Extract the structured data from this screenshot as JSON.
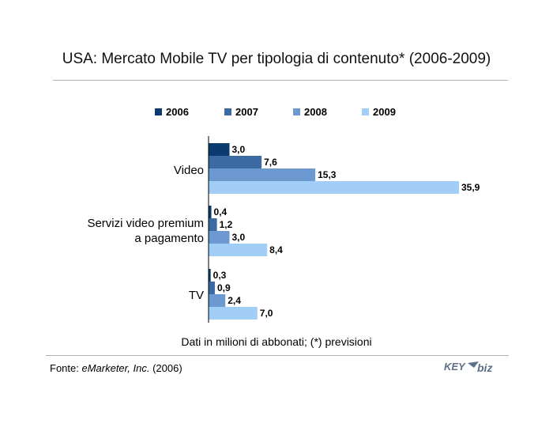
{
  "source": {
    "prefix": "Fonte: ",
    "publisher": "eMarketer, Inc.",
    "suffix": " (2006)"
  },
  "logo": {
    "part1": "KEY",
    "part2": "biz"
  },
  "chart_data": {
    "type": "bar",
    "orientation": "horizontal",
    "title": "USA: Mercato Mobile TV per tipologia di contenuto* (2006-2009)",
    "note": "Dati in milioni di abbonati; (*) previsioni",
    "categories": [
      [
        "Video"
      ],
      [
        "Servizi video premium",
        "a pagamento"
      ],
      [
        "TV"
      ]
    ],
    "series": [
      {
        "name": "2006",
        "color": "#0b3a6e",
        "values": [
          3.0,
          0.4,
          0.3
        ],
        "labels": [
          "3,0",
          "0,4",
          "0,3"
        ]
      },
      {
        "name": "2007",
        "color": "#3c6aa2",
        "values": [
          7.6,
          1.2,
          0.9
        ],
        "labels": [
          "7,6",
          "1,2",
          "0,9"
        ]
      },
      {
        "name": "2008",
        "color": "#6c9ad0",
        "values": [
          15.3,
          3.0,
          2.4
        ],
        "labels": [
          "15,3",
          "3,0",
          "2,4"
        ]
      },
      {
        "name": "2009",
        "color": "#a2cdf6",
        "values": [
          35.9,
          8.4,
          7.0
        ],
        "labels": [
          "35,9",
          "8,4",
          "7,0"
        ]
      }
    ],
    "xlim": [
      0,
      36
    ],
    "grid": false,
    "legend": "top"
  }
}
